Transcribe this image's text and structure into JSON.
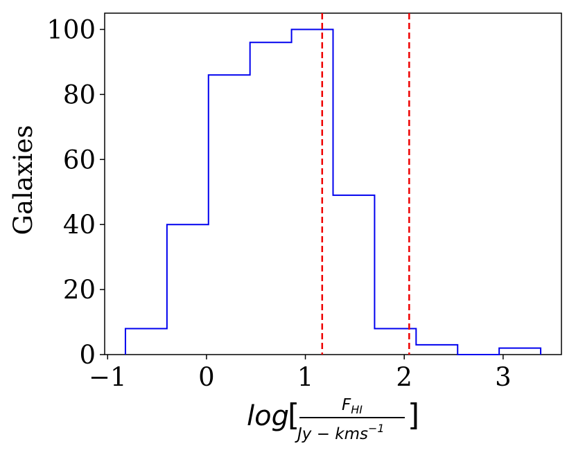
{
  "chart_data": {
    "type": "histogram",
    "title": "",
    "ylabel": "Galaxies",
    "xlabel": {
      "prefix": "log",
      "open_bracket": "[",
      "numerator": "F",
      "numerator_sub": "HI",
      "denominator": "Jy − kms",
      "denominator_sup": "−1",
      "close_bracket": "]"
    },
    "xlim": [
      -1.03,
      3.59
    ],
    "ylim": [
      0,
      105
    ],
    "xticks": [
      -1,
      0,
      1,
      2,
      3
    ],
    "xtick_labels": [
      "−1",
      "0",
      "1",
      "2",
      "3"
    ],
    "yticks": [
      0,
      20,
      40,
      60,
      80,
      100
    ],
    "ytick_labels": [
      "0",
      "20",
      "40",
      "60",
      "80",
      "100"
    ],
    "bin_edges": [
      -0.82,
      -0.4,
      0.02,
      0.44,
      0.86,
      1.28,
      1.7,
      2.12,
      2.54,
      2.96,
      3.38
    ],
    "counts": [
      8,
      40,
      86,
      96,
      100,
      49,
      8,
      3,
      0,
      2
    ],
    "histtype": "step",
    "series_color": "#0000ee",
    "vlines": [
      {
        "x": 1.17,
        "color": "#ee0000",
        "style": "dashed"
      },
      {
        "x": 2.05,
        "color": "#ee0000",
        "style": "dashed"
      }
    ],
    "grid": false
  }
}
